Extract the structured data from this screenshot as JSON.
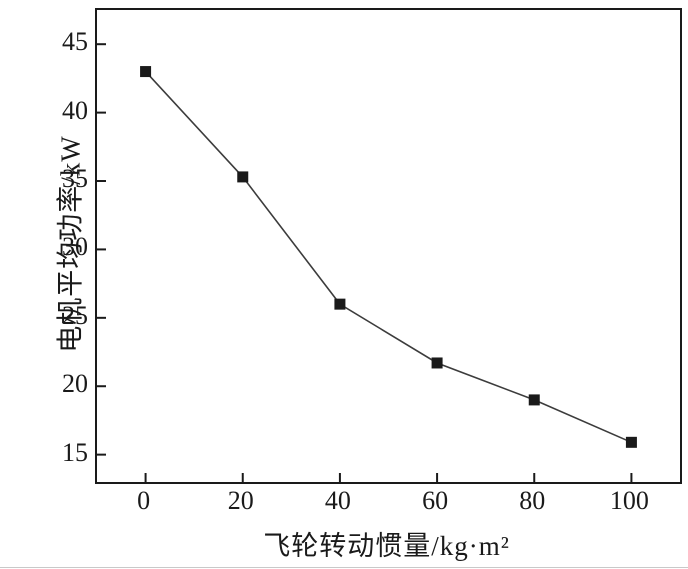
{
  "chart_data": {
    "type": "line",
    "title": "",
    "xlabel": "飞轮转动惯量/kg·m²",
    "ylabel": "电机平均功率/kW",
    "x": [
      0,
      20,
      40,
      60,
      80,
      100
    ],
    "values": [
      43.0,
      35.3,
      26.0,
      21.7,
      19.0,
      15.9
    ],
    "xlim": [
      -10,
      110
    ],
    "ylim": [
      13,
      47.5
    ],
    "xticks": [
      0,
      20,
      40,
      60,
      80,
      100
    ],
    "yticks": [
      15,
      20,
      25,
      30,
      35,
      40,
      45
    ],
    "grid": false,
    "legend": "none",
    "marker": "square",
    "marker_size": 11,
    "line_color": "#3c3c3c",
    "marker_color": "#1a1a1a",
    "axis_color": "#1a1a1a",
    "background_color": "#ffffff"
  }
}
